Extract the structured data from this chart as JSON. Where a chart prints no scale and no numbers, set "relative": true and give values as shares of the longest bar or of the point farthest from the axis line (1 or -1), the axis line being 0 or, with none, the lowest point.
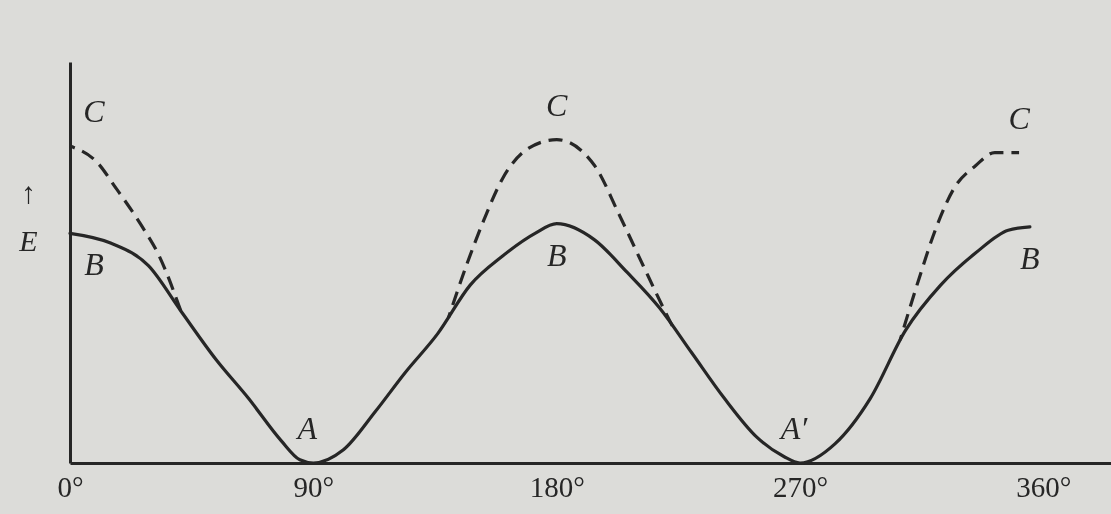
{
  "chart_data": {
    "type": "line",
    "relative": true,
    "ylabel": "↑\nE",
    "xlim": [
      0,
      385
    ],
    "xticks": [
      {
        "value": 0,
        "label": "0°"
      },
      {
        "value": 90,
        "label": "90°"
      },
      {
        "value": 180,
        "label": "180°"
      },
      {
        "value": 270,
        "label": "270°"
      },
      {
        "value": 360,
        "label": "360°"
      }
    ],
    "series": [
      {
        "color": "#262626",
        "line_style": "solid",
        "x": [
          0,
          15,
          29,
          41,
          54,
          66,
          78,
          85,
          90,
          101,
          113,
          124,
          136,
          148,
          160,
          172,
          180,
          194,
          206,
          218,
          230,
          242,
          254,
          264,
          270,
          283,
          296,
          309,
          322,
          335,
          347,
          355
        ],
        "values": [
          0.71,
          0.68,
          0.61,
          0.47,
          0.32,
          0.2,
          0.07,
          0.01,
          0,
          0.04,
          0.16,
          0.28,
          0.4,
          0.55,
          0.64,
          0.71,
          0.74,
          0.69,
          0.59,
          0.48,
          0.34,
          0.2,
          0.08,
          0.02,
          0,
          0.06,
          0.2,
          0.41,
          0.55,
          0.65,
          0.72,
          0.73
        ]
      },
      {
        "color": "#262626",
        "line_style": "dashed",
        "x": [
          0,
          10,
          17,
          26,
          33,
          41,
          90,
          140,
          147,
          153,
          160,
          169,
          180,
          194,
          203,
          212,
          220,
          223,
          270,
          307,
          314,
          320,
          327,
          335,
          342,
          351
        ],
        "values": [
          0.98,
          0.93,
          0.85,
          0.74,
          0.64,
          0.47,
          null,
          0.45,
          0.62,
          0.75,
          0.88,
          0.97,
          1,
          0.92,
          0.77,
          0.61,
          0.47,
          0.42,
          null,
          0.38,
          0.57,
          0.72,
          0.85,
          0.92,
          0.96,
          0.96
        ]
      }
    ],
    "annotations": [
      {
        "text": "C",
        "x": 0,
        "y": 0.98
      },
      {
        "text": "B",
        "x": 0,
        "y": 0.71
      },
      {
        "text": "A",
        "x": 90,
        "y": 0
      },
      {
        "text": "C",
        "x": 180,
        "y": 1
      },
      {
        "text": "B",
        "x": 180,
        "y": 0.74
      },
      {
        "text": "A′",
        "x": 270,
        "y": 0
      },
      {
        "text": "C",
        "x": 351,
        "y": 0.96
      },
      {
        "text": "B",
        "x": 355,
        "y": 0.73
      }
    ]
  }
}
